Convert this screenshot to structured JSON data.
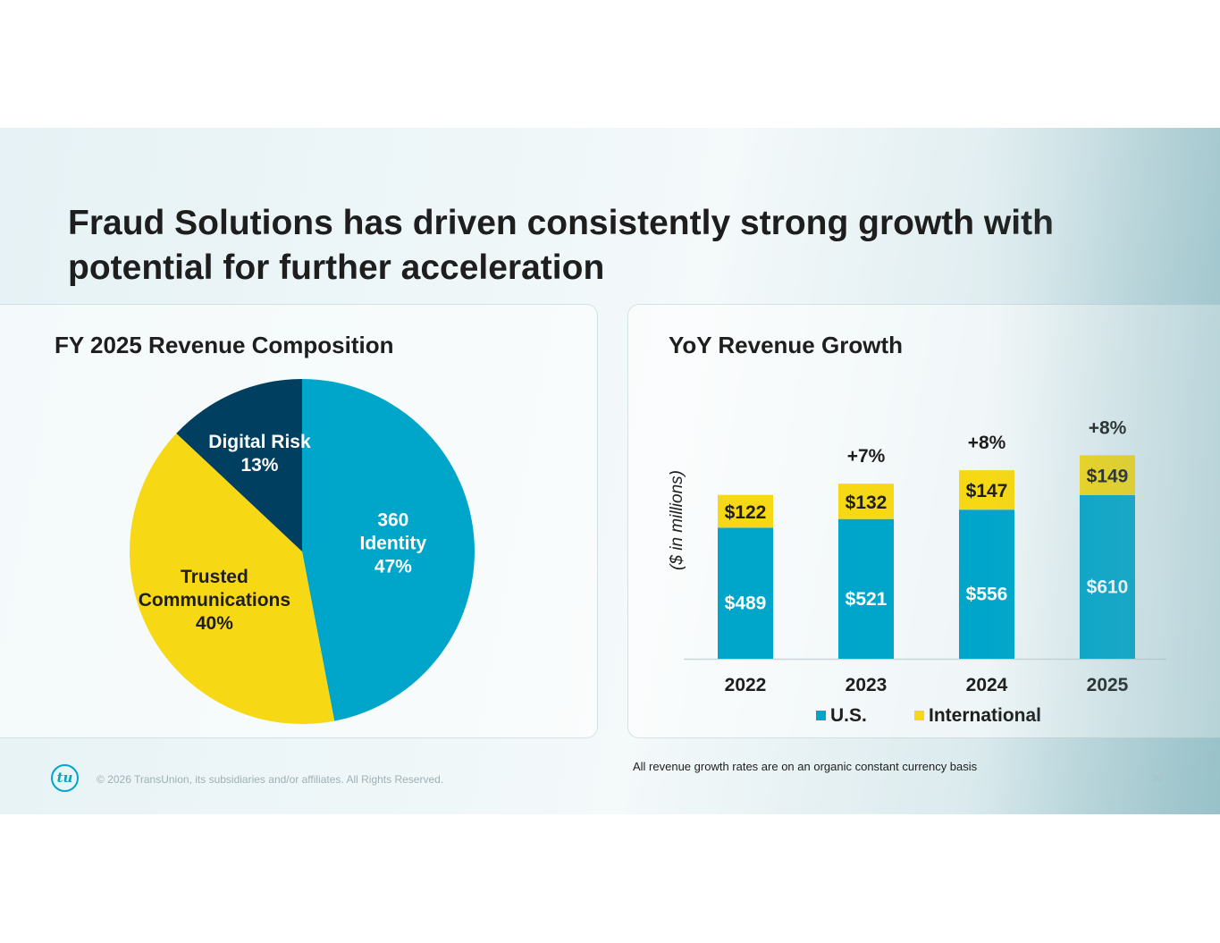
{
  "headline": "Fraud Solutions has driven consistently strong growth with potential for further acceleration",
  "colors": {
    "us": "#00a6ca",
    "international": "#f7d814",
    "digital_risk": "#003f5f",
    "text": "#1e1e1e",
    "label_white": "#ffffff"
  },
  "chart_data": [
    {
      "type": "pie",
      "title": "FY 2025 Revenue Composition",
      "slices": [
        {
          "name_lines": [
            "360",
            "Identity"
          ],
          "pct_label": "47%",
          "value": 47,
          "color": "#00a6ca",
          "label_color": "#ffffff"
        },
        {
          "name_lines": [
            "Trusted",
            "Communications"
          ],
          "pct_label": "40%",
          "value": 40,
          "color": "#f7d814",
          "label_color": "#1e1e1e"
        },
        {
          "name_lines": [
            "Digital Risk"
          ],
          "pct_label": "13%",
          "value": 13,
          "color": "#003f5f",
          "label_color": "#ffffff"
        }
      ]
    },
    {
      "type": "bar",
      "stacked": true,
      "title": "YoY Revenue Growth",
      "ylabel": "($ in millions)",
      "categories": [
        "2022",
        "2023",
        "2024",
        "2025"
      ],
      "series": [
        {
          "name": "U.S.",
          "values": [
            489,
            521,
            556,
            610
          ],
          "labels": [
            "$489",
            "$521",
            "$556",
            "$610"
          ],
          "color": "#00a6ca",
          "label_color": "#ffffff"
        },
        {
          "name": "International",
          "values": [
            122,
            132,
            147,
            149
          ],
          "labels": [
            "$122",
            "$132",
            "$147",
            "$149"
          ],
          "color": "#f7d814",
          "label_color": "#1e1e1e"
        }
      ],
      "growth_labels": [
        "",
        "+7%",
        "+8%",
        "+8%"
      ],
      "legend": [
        "U.S.",
        "International"
      ],
      "legend_position": "bottom"
    }
  ],
  "footer": {
    "note": "All revenue growth rates are on an organic constant currency basis",
    "copyright": "© 2026 TransUnion, its subsidiaries and/or affiliates. All Rights Reserved.",
    "logo_text": "tu",
    "page_number": "30"
  }
}
